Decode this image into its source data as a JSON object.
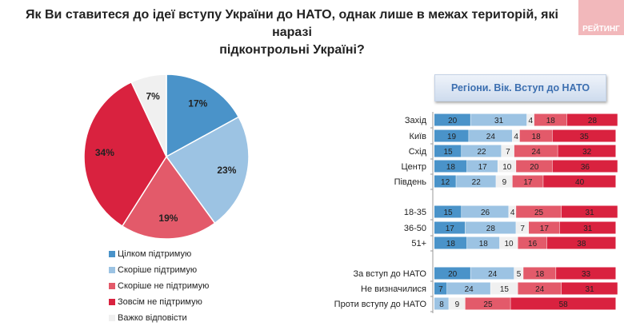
{
  "title_line1": "Як Ви ставитеся до ідеї вступу України до НАТО, однак лише в межах територій, які наразі",
  "title_line2": "підконтрольні Україні?",
  "logo": "РЕЙТИНГ",
  "chart_data": [
    {
      "type": "pie",
      "categories": [
        "Цілком підтримую",
        "Скоріше підтримую",
        "Скоріше не підтримую",
        "Зовсім не підтримую",
        "Важко відповісти"
      ],
      "values": [
        17,
        23,
        19,
        34,
        7
      ],
      "colors": [
        "#4a93c9",
        "#9cc3e3",
        "#e35a6a",
        "#d9223f",
        "#f0f0f0"
      ],
      "legend": "bottom-left"
    },
    {
      "type": "bar",
      "stacked": true,
      "orientation": "horizontal",
      "title": "Регіони. Вік. Вступ до НАТО",
      "categories": [
        "Захід",
        "Київ",
        "Схід",
        "Центр",
        "Південь",
        "18-35",
        "36-50",
        "51+",
        "За вступ до НАТО",
        "Не визначилися",
        "Проти вступу до НАТО"
      ],
      "groups": [
        [
          0,
          1,
          2,
          3,
          4
        ],
        [
          5,
          6,
          7
        ],
        [
          8,
          9,
          10
        ]
      ],
      "series": [
        {
          "name": "Цілком підтримую",
          "color": "#4a93c9",
          "values": [
            20,
            19,
            15,
            18,
            12,
            15,
            17,
            18,
            20,
            7,
            0
          ]
        },
        {
          "name": "Скоріше підтримую",
          "color": "#9cc3e3",
          "values": [
            31,
            24,
            22,
            17,
            22,
            26,
            28,
            18,
            24,
            24,
            8
          ]
        },
        {
          "name": "Важко відповісти",
          "color": "#f0f0f0",
          "values": [
            4,
            4,
            7,
            10,
            9,
            4,
            7,
            10,
            5,
            15,
            9
          ]
        },
        {
          "name": "Скоріше не підтримую",
          "color": "#e35a6a",
          "values": [
            18,
            18,
            24,
            20,
            17,
            25,
            17,
            16,
            18,
            24,
            25
          ]
        },
        {
          "name": "Зовсім не підтримую",
          "color": "#d9223f",
          "values": [
            28,
            35,
            32,
            36,
            40,
            31,
            31,
            38,
            33,
            31,
            58
          ]
        }
      ]
    }
  ]
}
